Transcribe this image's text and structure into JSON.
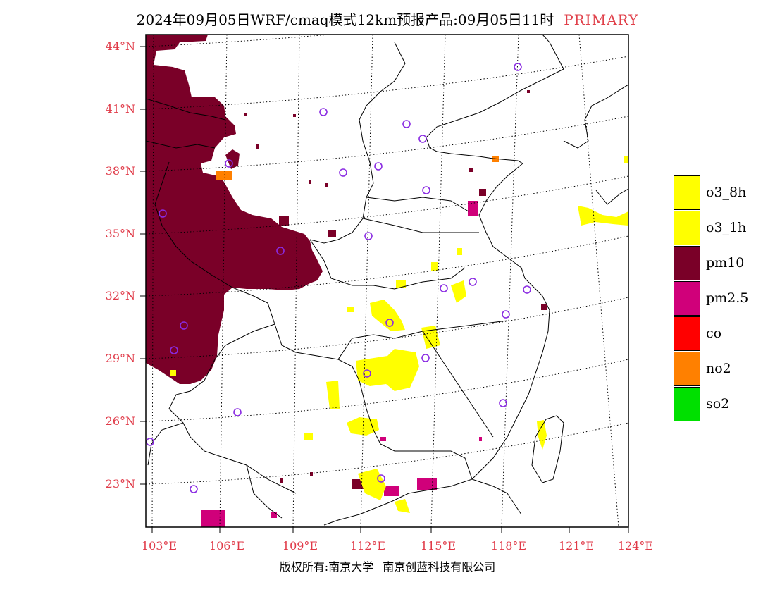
{
  "title": {
    "main": "2024年09月05日WRF/cmaq模式12km预报产品:09月05日11时",
    "tag": "PRIMARY"
  },
  "axes": {
    "lat_labels": [
      "44°N",
      "41°N",
      "38°N",
      "35°N",
      "32°N",
      "29°N",
      "26°N",
      "23°N"
    ],
    "lon_labels": [
      "103°E",
      "106°E",
      "109°E",
      "112°E",
      "115°E",
      "118°E",
      "121°E",
      "124°E"
    ]
  },
  "legend": [
    {
      "label": "o3_8h",
      "color": "#ffff00"
    },
    {
      "label": "o3_1h",
      "color": "#ffff00"
    },
    {
      "label": "pm10",
      "color": "#7a0028"
    },
    {
      "label": "pm2.5",
      "color": "#d0007a"
    },
    {
      "label": "co",
      "color": "#ff0000"
    },
    {
      "label": "no2",
      "color": "#ff8000"
    },
    {
      "label": "so2",
      "color": "#00e000"
    }
  ],
  "credit": {
    "left": "版权所有:南京大学",
    "right": "南京创蓝科技有限公司"
  },
  "colors": {
    "axis_label": "#e03a48",
    "station_marker": "#8a2be2",
    "pm10": "#7a0028",
    "pm25": "#d0007a",
    "o3": "#ffff00",
    "no2": "#ff8000"
  }
}
